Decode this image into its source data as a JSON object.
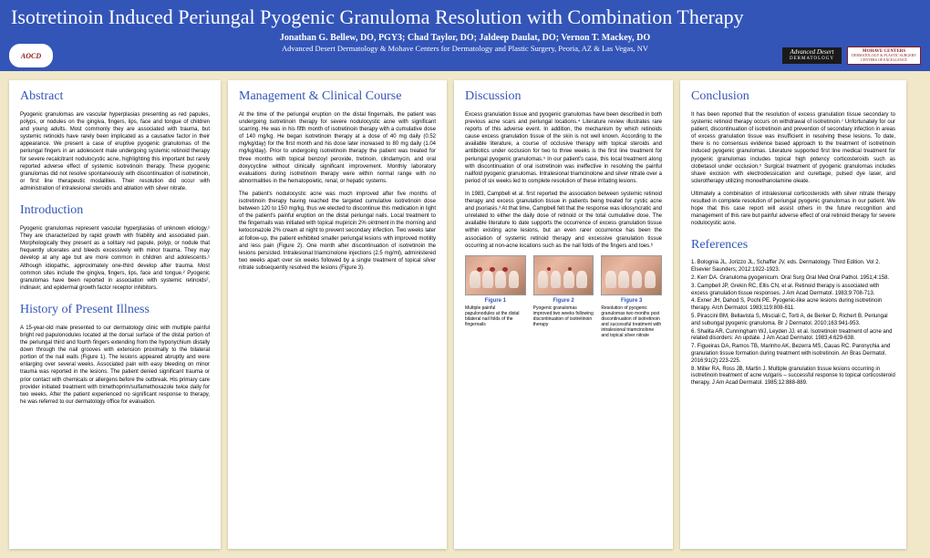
{
  "header": {
    "title": "Isotretinoin Induced Periungal Pyogenic Granuloma Resolution with Combination Therapy",
    "authors": "Jonathan G. Bellew, DO, PGY3; Chad Taylor, DO; Jaldeep Daulat, DO; Vernon T. Mackey, DO",
    "affiliation": "Advanced Desert Dermatology & Mohave Centers for Dermatology and Plastic Surgery, Peoria, AZ & Las Vegas, NV",
    "logo_left": "AOCD",
    "logo_ad_line1": "Advanced Desert",
    "logo_ad_line2": "DERMATOLOGY",
    "logo_mohave_line1": "MOHAVE CENTERS",
    "logo_mohave_line2": "DERMATOLOGY & PLASTIC SURGERY",
    "logo_mohave_line3": "CENTERS OF EXCELLENCE"
  },
  "sections": {
    "abstract_title": "Abstract",
    "abstract_body": "Pyogenic granulomas are vascular hyperplasias presenting as red papules, polyps, or nodules on the gingiva, fingers, lips, face and tongue of children and young adults. Most commonly they are associated with trauma, but systemic retinoids have rarely been implicated as a causative factor in their appearance.\nWe present a case of eruptive pyogenic granulomas of the periungal fingers in an adolescent male undergoing systemic retinoid therapy for severe recalcitrant nodulocystic acne, highlighting this important but rarely reported adverse effect of systemic isotretinoin therapy. These pyogenic granulomas did not resolve spontaneously with discontinuation of isotretinoin, or first line therapeutic modalities. Their resolution did occur with administration of intralesional steroids and ablation with silver nitrate.",
    "intro_title": "Introduction",
    "intro_body": "Pyogenic granulomas represent vascular hyperplasias of unknown etiology.¹ They are characterized by rapid growth with friability and associated pain. Morphologically they present as a solitary red papule, polyp, or nodule that frequently ulcerates and bleeds excessively with minor trauma. They may develop at any age but are more common in children and adolescents.¹ Although idiopathic, approximately one-third develop after trauma. Most common sites include the gingiva, fingers, lips, face and tongue.² Pyogenic granulomas have been reported in association with systemic retinoids², indinavir, and epidermal growth factor receptor inhibitors.",
    "history_title": "History of Present Illness",
    "history_body": "A 15-year-old male presented to our dermatology clinic with multiple painful bright red papulonodules located at the dorsal surface of the distal portion of the periungal third and fourth fingers extending from the hyponychium distally down through the nail grooves with extension proximally to the bilateral portion of the nail walls (Figure 1). The lesions appeared abruptly and were enlarging over several weeks. Associated pain with easy bleeding on minor trauma was reported in the lesions. The patient denied significant trauma or prior contact with chemicals or allergens before the outbreak. His primary care provider initiated treatment with trimethoprim/sulfamethoxazole twice daily for two weeks. After the patient experienced no significant response to therapy, he was referred to our dermatology office for evaluation.",
    "mgmt_title": "Management & Clinical Course",
    "mgmt_body1": "At the time of the periungal eruption on the distal fingernails, the patient was undergoing isotretinoin therapy for severe nodulocystic acne with significant scarring. He was in his fifth month of isotretinoin therapy with a cumulative dose of 140 mg/kg. He began isotretinoin therapy at a dose of 40 mg daily (0.52 mg/kg/day) for the first month and his dose later increased to 80 mg daily (1.04 mg/kg/day). Prior to undergoing isotretinoin therapy the patient was treated for three months with topical benzoyl peroxide, tretinoin, clindamycin, and oral doxycycline without clinically significant improvement. Monthly laboratory evaluations during isotretinoin therapy were within normal range with no abnormalities in the hematopoietic, renal, or hepatic systems.",
    "mgmt_body2": "The patient's nodulocystic acne was much improved after five months of isotretinoin therapy having reached the targeted cumulative isotretinoin dose between 120 to 150 mg/kg, thus we elected to discontinue this medication in light of the patient's painful eruption on the distal periungal nails. Local treatment to the fingernails was initiated with topical mupiricin 2% ointment in the morning and ketoconazole 2% cream at night to prevent secondary infection. Two weeks later at follow-up, the patient exhibited smaller periungal lesions with improved motility and less pain (Figure 2). One month after discontinuation of isotretinoin the lesions persisted. Intralesional triamcinolone injections (2.5 mg/ml), administered two weeks apart over six weeks followed by a single treatment of topical silver nitrate subsequently resolved the lesions (Figure 3).",
    "discussion_title": "Discussion",
    "discussion_body1": "Excess granulation tissue and pyogenic granulomas have been described in both previous acne scars and periungal locations.⁴ Literature review illustrates rare reports of this adverse event. In addition, the mechanism by which retinoids cause excess granulation tissue of the skin is not well known. According to the available literature, a course of occlusive therapy with topical steroids and antibiotics under occlusion for two to three weeks is the first line treatment for periungal pyogenic granulomas.⁵ In our patient's case, this local treatment along with discontinuation of oral isotretinoin was ineffective in resolving the painful nailfold pyogenic granulomas. Intralesional triamcinolone and silver nitrate over a period of six weeks led to complete resolution of these irritating lesions.",
    "discussion_body2": "In 1983, Campbell et al. first reported the association between systemic retinoid therapy and excess granulation tissue in patients being treated for cystic acne and psoriasis.³ At that time, Campbell felt that the response was idiosyncratic and unrelated to either the daily dose of retinoid or the total cumulative dose. The available literature to date supports the occurrence of excess granulation tissue within existing acne lesions, but an even rarer occurrence has been the association of systemic retinoid therapy and excessive granulation tissue occurring at non-acne locations such as the nail folds of the fingers and toes.⁶",
    "conclusion_title": "Conclusion",
    "conclusion_body1": "It has been reported that the resolution of excess granulation tissue secondary to systemic retinoid therapy occurs on withdrawal of isotretinoin.⁷ Unfortunately for our patient, discontinuation of isotretinoin and prevention of secondary infection in areas of excess granulation tissue was insufficient in resolving these lesions. To date, there is no consensus evidence based approach to the treatment of isotretinoin induced pyogenic granulomas. Literature supported first line medical treatment for pyogenic granulomas includes topical high potency corticosteroids such as clobetasol under occlusion.⁵ Surgical treatment of pyogenic granulomas includes shave excision with electrodessication and curettage, pulsed dye laser, and sclerotherapy utilizing monoethanolamine oleate.",
    "conclusion_body2": "Ultimately a combination of intralesional corticosteroids with silver nitrate therapy resulted in complete resolution of periungal pyogenic granulomas in our patient. We hope that this case report will assist others in the future recognition and management of this rare but painful adverse effect of oral retinoid therapy for severe nodulocystic acne.",
    "references_title": "References"
  },
  "figures": {
    "fig1_label": "Figure 1",
    "fig1_caption": "Multiple painful papulonodules at the distal bilateral nail folds of the fingernails",
    "fig2_label": "Figure 2",
    "fig2_caption": "Pyogenic granulomas improved two weeks following discontinuation of isotretinoin therapy",
    "fig3_label": "Figure 3",
    "fig3_caption": "Resolution of pyogenic granulomas two months post discontinuation of isotretinoin and successful treatment with intralesional triamcinolone and topical silver nitrate"
  },
  "references": [
    "1. Bolognia JL, Jorizzo JL, Schaffer JV, eds. Dermatology. Third Edition. Vol 2. Elsevier Saunders; 2012:1922-1923.",
    "2. Kerr DA. Granuloma pyogenicum. Oral Surg Oral Med Oral Pathol. 1951;4:158.",
    "3. Campbell JP, Grekin RC, Ellis CN, et al. Retinoid therapy is associated with excess granulation tissue responses. J Am Acad Dermatol. 1983;9:708-713.",
    "4. Exner JH, Dahod S, Pochi PE. Pyogenic-like acne lesions during isotretinoin therapy. Arch Dermatol. 1983;119:808-811.",
    "5. Piraccini BM, Bellavista S, Misciali C, Torti A, de Berker D, Richert B. Periungal and subungal pyogenic granuloma. Br J Dermatol. 2010;163:941-953.",
    "6. Shalita AR, Cunningham WJ, Leyden JJ, et al. Isotretinoin treatment of acne and related disorders: An update. J Am Acad Dermatol. 1983;4:629-638.",
    "7. Figueiras DA, Ramos TB, Marinho AK, Bezerra MS, Cauas RC. Paronychia and granulation tissue formation during treatment with isotretinoin. An Bras Dermatol. 2016;91(2):223-225.",
    "8. Miller RA, Ross JB, Martin J. Multiple granulation tissue lesions occurring in isotretinoin treatment of acne vulgaris – successful response to topical corticosteroid therapy. J Am Acad Dermatol. 1985;12:888-889."
  ],
  "colors": {
    "header_bg": "#3355b8",
    "page_bg": "#f0e8c8",
    "panel_bg": "#ffffff",
    "title_color": "#3355b8"
  }
}
